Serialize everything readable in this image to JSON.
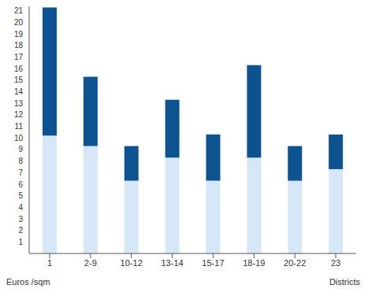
{
  "chart_data": {
    "type": "bar",
    "stacked": true,
    "x_label": "Districts",
    "y_label": "Euros /sqm",
    "categories": [
      "1",
      "2-9",
      "10-12",
      "13-14",
      "15-17",
      "18-19",
      "20-22",
      "23"
    ],
    "series": [
      {
        "color": "#d6e8f7",
        "values": [
          10.2,
          9.3,
          6.3,
          8.3,
          6.3,
          8.3,
          6.3,
          7.3
        ]
      },
      {
        "color": "#0d5391",
        "values": [
          11.1,
          6,
          3,
          5,
          4,
          8,
          3,
          3
        ]
      }
    ],
    "ylim": [
      0,
      21.4
    ],
    "yticks": [
      1,
      2,
      3,
      4,
      5,
      6,
      7,
      8,
      9,
      10,
      11,
      12,
      13,
      14,
      15,
      16,
      17,
      18,
      19,
      20,
      21
    ],
    "grid": false,
    "legend": false
  }
}
